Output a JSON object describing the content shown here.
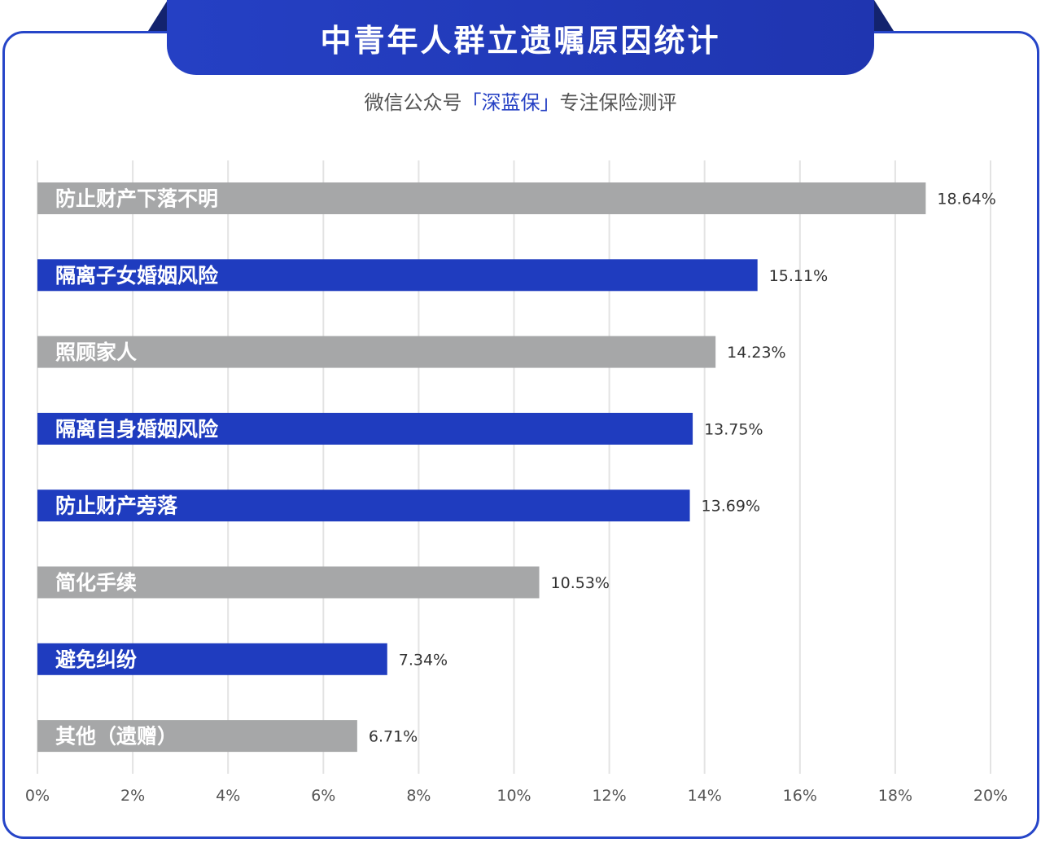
{
  "title": "中青年人群立遗嘱原因统计",
  "subtitle": {
    "prefix": "微信公众号",
    "brand": "「深蓝保」",
    "suffix": "专注保险测评"
  },
  "colors": {
    "frame": "#2645c8",
    "blue_bar": "#1f3cbf",
    "gray_bar": "#a6a7a8",
    "grid": "#e3e3e3"
  },
  "chart_data": {
    "type": "bar",
    "orientation": "horizontal",
    "categories": [
      "防止财产下落不明",
      "隔离子女婚姻风险",
      "照顾家人",
      "隔离自身婚姻风险",
      "防止财产旁落",
      "简化手续",
      "避免纠纷",
      "其他（遗赠）"
    ],
    "values": [
      18.64,
      15.11,
      14.23,
      13.75,
      13.69,
      10.53,
      7.34,
      6.71
    ],
    "value_labels": [
      "18.64%",
      "15.11%",
      "14.23%",
      "13.75%",
      "13.69%",
      "10.53%",
      "7.34%",
      "6.71%"
    ],
    "bar_colors": [
      "gray",
      "blue",
      "gray",
      "blue",
      "blue",
      "gray",
      "blue",
      "gray"
    ],
    "x_ticks": [
      0,
      2,
      4,
      6,
      8,
      10,
      12,
      14,
      16,
      18,
      20
    ],
    "x_tick_labels": [
      "0%",
      "2%",
      "4%",
      "6%",
      "8%",
      "10%",
      "12%",
      "14%",
      "16%",
      "18%",
      "20%"
    ],
    "xlim": [
      0,
      20
    ],
    "grid": "vertical",
    "legend": "none"
  }
}
